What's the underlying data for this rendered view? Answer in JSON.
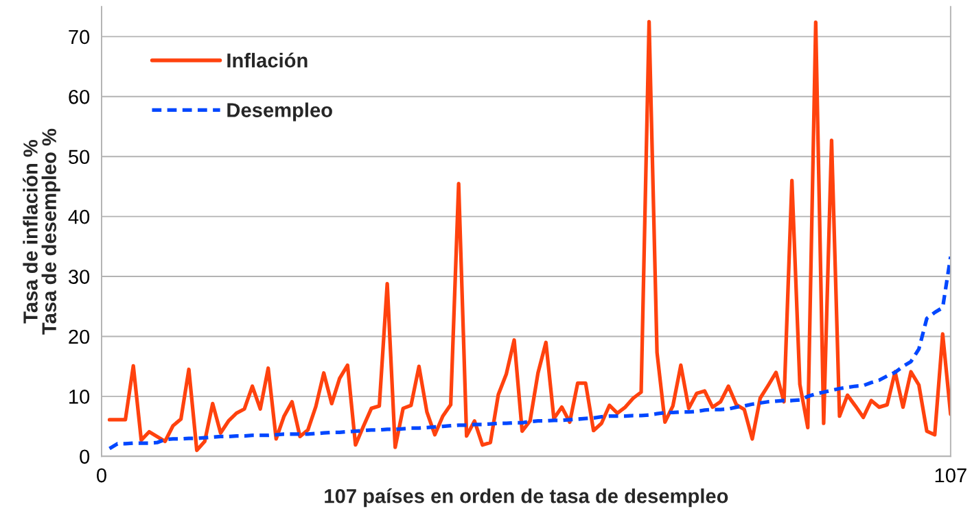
{
  "chart_data": {
    "type": "line",
    "xlabel": "107 países en orden de tasa de desempleo",
    "ylabel": "Tasa de inflación %\nTasa de desempleo %",
    "x": [
      1,
      2,
      3,
      4,
      5,
      6,
      7,
      8,
      9,
      10,
      11,
      12,
      13,
      14,
      15,
      16,
      17,
      18,
      19,
      20,
      21,
      22,
      23,
      24,
      25,
      26,
      27,
      28,
      29,
      30,
      31,
      32,
      33,
      34,
      35,
      36,
      37,
      38,
      39,
      40,
      41,
      42,
      43,
      44,
      45,
      46,
      47,
      48,
      49,
      50,
      51,
      52,
      53,
      54,
      55,
      56,
      57,
      58,
      59,
      60,
      61,
      62,
      63,
      64,
      65,
      66,
      67,
      68,
      69,
      70,
      71,
      72,
      73,
      74,
      75,
      76,
      77,
      78,
      79,
      80,
      81,
      82,
      83,
      84,
      85,
      86,
      87,
      88,
      89,
      90,
      91,
      92,
      93,
      94,
      95,
      96,
      97,
      98,
      99,
      100,
      101,
      102,
      103,
      104,
      105,
      106,
      107
    ],
    "xlim": [
      0,
      107
    ],
    "xticks": [
      0,
      107
    ],
    "ylim": [
      0,
      75
    ],
    "yticks": [
      0,
      10,
      20,
      30,
      40,
      50,
      60,
      70
    ],
    "grid": "y",
    "legend": "top left",
    "series": [
      {
        "name": "Inflación",
        "color": "#ff420e",
        "line_style": "solid",
        "values": [
          6.1,
          6.1,
          6.1,
          15.1,
          2.7,
          4.1,
          3.3,
          2.5,
          5.1,
          6.2,
          14.5,
          1.0,
          2.5,
          8.8,
          3.9,
          5.9,
          7.2,
          7.9,
          11.7,
          7.9,
          14.7,
          2.9,
          6.7,
          9.1,
          3.3,
          4.4,
          8.3,
          13.9,
          8.8,
          13.0,
          15.2,
          1.9,
          5.0,
          8.0,
          8.4,
          28.8,
          1.5,
          8.0,
          8.5,
          15.0,
          7.4,
          3.6,
          6.7,
          8.6,
          45.5,
          3.4,
          5.9,
          1.9,
          2.3,
          10.3,
          13.7,
          19.4,
          4.2,
          5.9,
          13.9,
          19.0,
          6.3,
          8.2,
          5.7,
          12.2,
          12.2,
          4.3,
          5.5,
          8.5,
          7.2,
          8.2,
          9.7,
          10.7,
          72.5,
          17.3,
          5.7,
          8.4,
          15.2,
          8.0,
          10.5,
          10.9,
          8.2,
          9.1,
          11.7,
          8.6,
          7.8,
          2.9,
          9.7,
          11.8,
          14.0,
          9.1,
          46.0,
          12.0,
          4.8,
          72.4,
          5.5,
          52.7,
          6.7,
          10.2,
          8.4,
          6.5,
          9.3,
          8.2,
          8.6,
          14.1,
          8.2,
          14.1,
          11.9,
          4.2,
          3.6,
          20.4,
          7.0
        ]
      },
      {
        "name": "Desempleo",
        "color": "#0047ff",
        "line_style": "dashed",
        "values": [
          1.3,
          2.1,
          2.1,
          2.2,
          2.2,
          2.2,
          2.3,
          2.8,
          2.9,
          2.9,
          3.0,
          3.0,
          3.1,
          3.2,
          3.3,
          3.3,
          3.4,
          3.4,
          3.5,
          3.5,
          3.5,
          3.6,
          3.7,
          3.7,
          3.7,
          3.7,
          3.8,
          3.9,
          4.0,
          4.0,
          4.1,
          4.2,
          4.3,
          4.4,
          4.4,
          4.5,
          4.5,
          4.6,
          4.7,
          4.7,
          4.8,
          4.9,
          5.0,
          5.1,
          5.2,
          5.2,
          5.3,
          5.3,
          5.4,
          5.5,
          5.5,
          5.6,
          5.6,
          5.8,
          5.9,
          5.9,
          6.0,
          6.0,
          6.1,
          6.2,
          6.3,
          6.4,
          6.6,
          6.7,
          6.7,
          6.7,
          6.8,
          6.8,
          6.9,
          7.1,
          7.3,
          7.3,
          7.4,
          7.4,
          7.5,
          7.7,
          7.8,
          7.8,
          7.9,
          8.2,
          8.4,
          8.7,
          8.9,
          9.1,
          9.2,
          9.3,
          9.3,
          9.4,
          10.0,
          10.4,
          10.7,
          11.0,
          11.3,
          11.5,
          11.7,
          11.8,
          12.3,
          12.7,
          13.4,
          14.0,
          15.0,
          15.8,
          17.9,
          23.0,
          24.0,
          24.8,
          33.3
        ]
      }
    ]
  }
}
